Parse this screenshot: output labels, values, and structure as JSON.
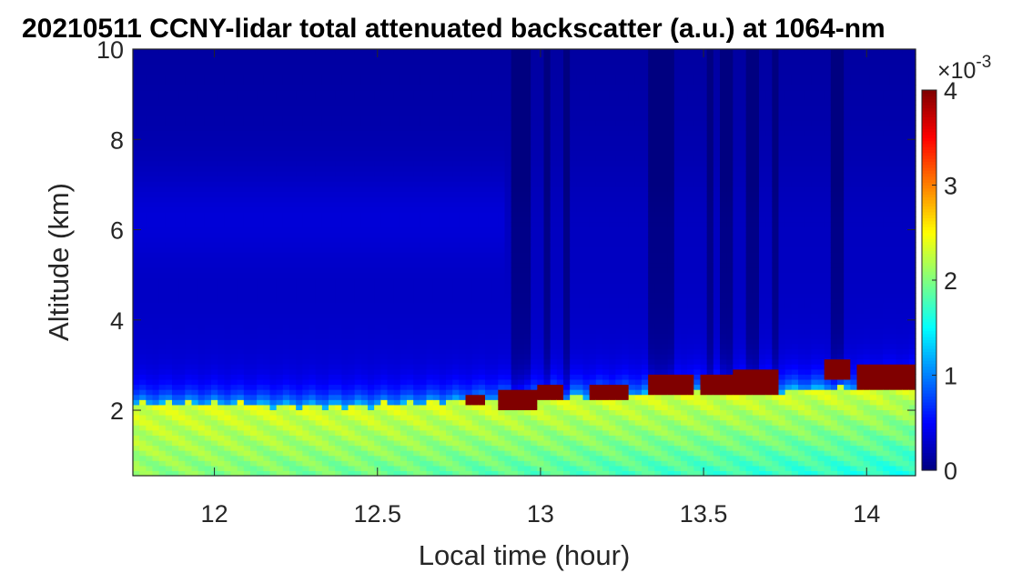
{
  "chart_data": {
    "type": "heatmap",
    "title": "20210511 CCNY-lidar total attenuated backscatter (a.u.) at 1064-nm",
    "xlabel": "Local time (hour)",
    "ylabel": "Altitude (km)",
    "xlim": [
      11.75,
      14.15
    ],
    "ylim": [
      0.55,
      10
    ],
    "xticks": [
      12,
      12.5,
      13,
      13.5,
      14
    ],
    "xtick_labels": [
      "12",
      "12.5",
      "13",
      "13.5",
      "14"
    ],
    "yticks": [
      2,
      4,
      6,
      8,
      10
    ],
    "ytick_labels": [
      "2",
      "4",
      "6",
      "8",
      "10"
    ],
    "colorbar": {
      "colormap": "jet",
      "clim": [
        0,
        4
      ],
      "ticks": [
        0,
        1,
        2,
        3,
        4
      ],
      "tick_labels": [
        "0",
        "1",
        "2",
        "3",
        "4"
      ],
      "multiplier_base": "×10",
      "multiplier_exponent": "-3"
    },
    "boundary_layer_top_km": [
      [
        11.75,
        2.15
      ],
      [
        12.0,
        2.15
      ],
      [
        12.25,
        2.1
      ],
      [
        12.5,
        2.12
      ],
      [
        12.75,
        2.2
      ],
      [
        13.0,
        2.3
      ],
      [
        13.25,
        2.35
      ],
      [
        13.5,
        2.4
      ],
      [
        13.75,
        2.45
      ],
      [
        14.0,
        2.5
      ],
      [
        14.15,
        2.6
      ]
    ],
    "cloud_segments": [
      {
        "x0": 12.78,
        "x1": 12.83,
        "bottom_km": 2.1,
        "top_km": 2.4
      },
      {
        "x0": 12.87,
        "x1": 12.98,
        "bottom_km": 2.05,
        "top_km": 2.5
      },
      {
        "x0": 13.0,
        "x1": 13.06,
        "bottom_km": 2.25,
        "top_km": 2.6
      },
      {
        "x0": 13.15,
        "x1": 13.26,
        "bottom_km": 2.25,
        "top_km": 2.6
      },
      {
        "x0": 13.34,
        "x1": 13.46,
        "bottom_km": 2.35,
        "top_km": 2.85
      },
      {
        "x0": 13.5,
        "x1": 13.58,
        "bottom_km": 2.4,
        "top_km": 2.75
      },
      {
        "x0": 13.6,
        "x1": 13.72,
        "bottom_km": 2.4,
        "top_km": 2.9
      },
      {
        "x0": 13.88,
        "x1": 13.95,
        "bottom_km": 2.7,
        "top_km": 3.15
      },
      {
        "x0": 13.97,
        "x1": 14.15,
        "bottom_km": 2.45,
        "top_km": 3.05
      }
    ],
    "dark_columns": [
      {
        "x0": 12.91,
        "x1": 12.96
      },
      {
        "x0": 13.02,
        "x1": 13.04
      },
      {
        "x0": 13.07,
        "x1": 13.09
      },
      {
        "x0": 13.34,
        "x1": 13.36
      },
      {
        "x0": 13.38,
        "x1": 13.4
      },
      {
        "x0": 13.52,
        "x1": 13.54
      },
      {
        "x0": 13.56,
        "x1": 13.58
      },
      {
        "x0": 13.64,
        "x1": 13.66
      },
      {
        "x0": 13.72,
        "x1": 13.73
      },
      {
        "x0": 13.89,
        "x1": 13.92
      }
    ],
    "grid": false
  }
}
